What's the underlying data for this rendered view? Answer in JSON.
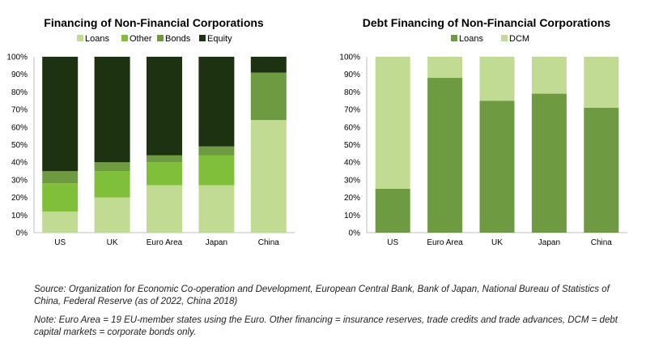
{
  "colors": {
    "Loans": "#c1dc92",
    "Other": "#80bf3a",
    "Bonds": "#6e9a42",
    "Equity": "#1c3210",
    "DebtLoans": "#6e9a42",
    "DCM": "#c1dc92"
  },
  "chart_data": [
    {
      "type": "bar",
      "stacked": true,
      "title": "Financing of Non-Financial Corporations",
      "categories": [
        "US",
        "UK",
        "Euro Area",
        "Japan",
        "China"
      ],
      "series": [
        {
          "name": "Loans",
          "values": [
            12,
            20,
            27,
            27,
            64
          ]
        },
        {
          "name": "Other",
          "values": [
            16,
            15,
            13,
            17,
            0
          ]
        },
        {
          "name": "Bonds",
          "values": [
            7,
            5,
            4,
            5,
            27
          ]
        },
        {
          "name": "Equity",
          "values": [
            65,
            60,
            56,
            51,
            9
          ]
        }
      ],
      "yticks": [
        "0%",
        "10%",
        "20%",
        "30%",
        "40%",
        "50%",
        "60%",
        "70%",
        "80%",
        "90%",
        "100%"
      ],
      "ylim": [
        0,
        100
      ],
      "legend": "top"
    },
    {
      "type": "bar",
      "stacked": true,
      "title": "Debt Financing of Non-Financial Corporations",
      "categories": [
        "US",
        "Euro Area",
        "UK",
        "Japan",
        "China"
      ],
      "series": [
        {
          "name": "Loans",
          "values": [
            25,
            88,
            75,
            79,
            71
          ]
        },
        {
          "name": "DCM",
          "values": [
            75,
            12,
            25,
            21,
            29
          ]
        }
      ],
      "yticks": [
        "0%",
        "10%",
        "20%",
        "30%",
        "40%",
        "50%",
        "60%",
        "70%",
        "80%",
        "90%",
        "100%"
      ],
      "ylim": [
        0,
        100
      ],
      "legend": "top"
    }
  ],
  "notes": {
    "source": "Source: Organization for Economic Co-operation and Development, European Central Bank, Bank of Japan, National Bureau of Statistics of China, Federal Reserve (as of 2022, China 2018)",
    "note": "Note: Euro Area = 19 EU-member states using the Euro. Other financing = insurance reserves, trade credits and trade advances, DCM = debt capital markets = corporate bonds only."
  }
}
